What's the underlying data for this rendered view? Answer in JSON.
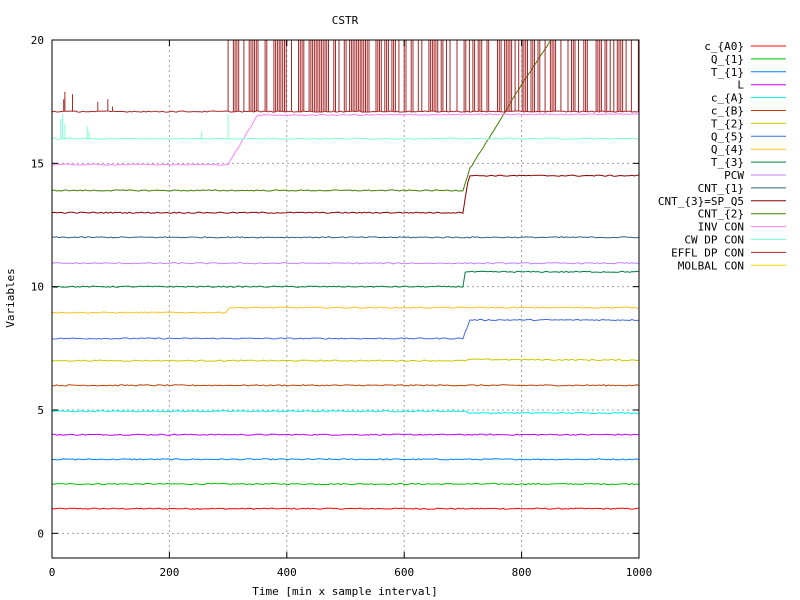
{
  "chart_data": {
    "type": "line",
    "title": "CSTR",
    "xlabel": "Time [min x sample interval]",
    "ylabel": "Variables",
    "xlim": [
      0,
      1000
    ],
    "ylim": [
      -1,
      20
    ],
    "xticks": [
      0,
      200,
      400,
      600,
      800,
      1000
    ],
    "yticks": [
      0,
      5,
      10,
      15,
      20
    ],
    "grid": true,
    "legend_position": "right",
    "series": [
      {
        "name": "c_{A0}",
        "color": "#ff0000",
        "points": [
          [
            0,
            1
          ],
          [
            1000,
            1
          ]
        ]
      },
      {
        "name": "Q_{1}",
        "color": "#00c000",
        "points": [
          [
            0,
            2
          ],
          [
            1000,
            2
          ]
        ]
      },
      {
        "name": "T_{1}",
        "color": "#0080ff",
        "points": [
          [
            0,
            3
          ],
          [
            1000,
            3
          ]
        ]
      },
      {
        "name": "L",
        "color": "#c000ff",
        "points": [
          [
            0,
            4
          ],
          [
            1000,
            4
          ]
        ]
      },
      {
        "name": "c_{A}",
        "color": "#00eeee",
        "points": [
          [
            0,
            4.95
          ],
          [
            705,
            4.95
          ],
          [
            712,
            4.88
          ],
          [
            1000,
            4.88
          ]
        ]
      },
      {
        "name": "c_{B}",
        "color": "#c04000",
        "points": [
          [
            0,
            6
          ],
          [
            1000,
            6
          ]
        ]
      },
      {
        "name": "T_{2}",
        "color": "#c8c800",
        "points": [
          [
            0,
            7
          ],
          [
            705,
            7
          ],
          [
            712,
            7.05
          ],
          [
            1000,
            7.02
          ]
        ]
      },
      {
        "name": "Q_{5}",
        "color": "#4169e1",
        "points": [
          [
            0,
            7.9
          ],
          [
            700,
            7.9
          ],
          [
            712,
            8.65
          ],
          [
            1000,
            8.65
          ]
        ]
      },
      {
        "name": "Q_{4}",
        "color": "#ffc020",
        "points": [
          [
            0,
            8.95
          ],
          [
            295,
            8.95
          ],
          [
            302,
            9.15
          ],
          [
            1000,
            9.15
          ]
        ]
      },
      {
        "name": "T_{3}",
        "color": "#008040",
        "points": [
          [
            0,
            10
          ],
          [
            700,
            10
          ],
          [
            702,
            10.6
          ],
          [
            1000,
            10.6
          ]
        ]
      },
      {
        "name": "PCW",
        "color": "#c080ff",
        "points": [
          [
            0,
            10.95
          ],
          [
            1000,
            10.95
          ]
        ]
      },
      {
        "name": "CNT_{1}",
        "color": "#306080",
        "points": [
          [
            0,
            12
          ],
          [
            1000,
            12
          ]
        ]
      },
      {
        "name": "CNT_{3}=SP_Q5",
        "color": "#8b0000",
        "points": [
          [
            0,
            13
          ],
          [
            700,
            13
          ],
          [
            710,
            14.5
          ],
          [
            1000,
            14.5
          ]
        ]
      },
      {
        "name": "CNT_{2}",
        "color": "#408000",
        "points": [
          [
            0,
            13.9
          ],
          [
            700,
            13.9
          ],
          [
            712,
            14.8
          ],
          [
            760,
            16.6
          ],
          [
            800,
            18.2
          ],
          [
            850,
            20
          ]
        ]
      },
      {
        "name": "INV CON",
        "color": "#ff80ff",
        "points": [
          [
            0,
            14.95
          ],
          [
            300,
            14.95
          ],
          [
            350,
            16.95
          ],
          [
            1000,
            17
          ]
        ]
      },
      {
        "name": "CW DP CON",
        "color": "#7fffd4",
        "points": [
          [
            0,
            16
          ],
          [
            1000,
            16
          ]
        ]
      },
      {
        "name": "EFFL DP CON",
        "color": "#a52a2a",
        "points": [
          [
            0,
            17.1
          ],
          [
            1000,
            17.1
          ]
        ]
      },
      {
        "name": "MOLBAL CON",
        "color": "#f0e000",
        "points": []
      }
    ]
  }
}
